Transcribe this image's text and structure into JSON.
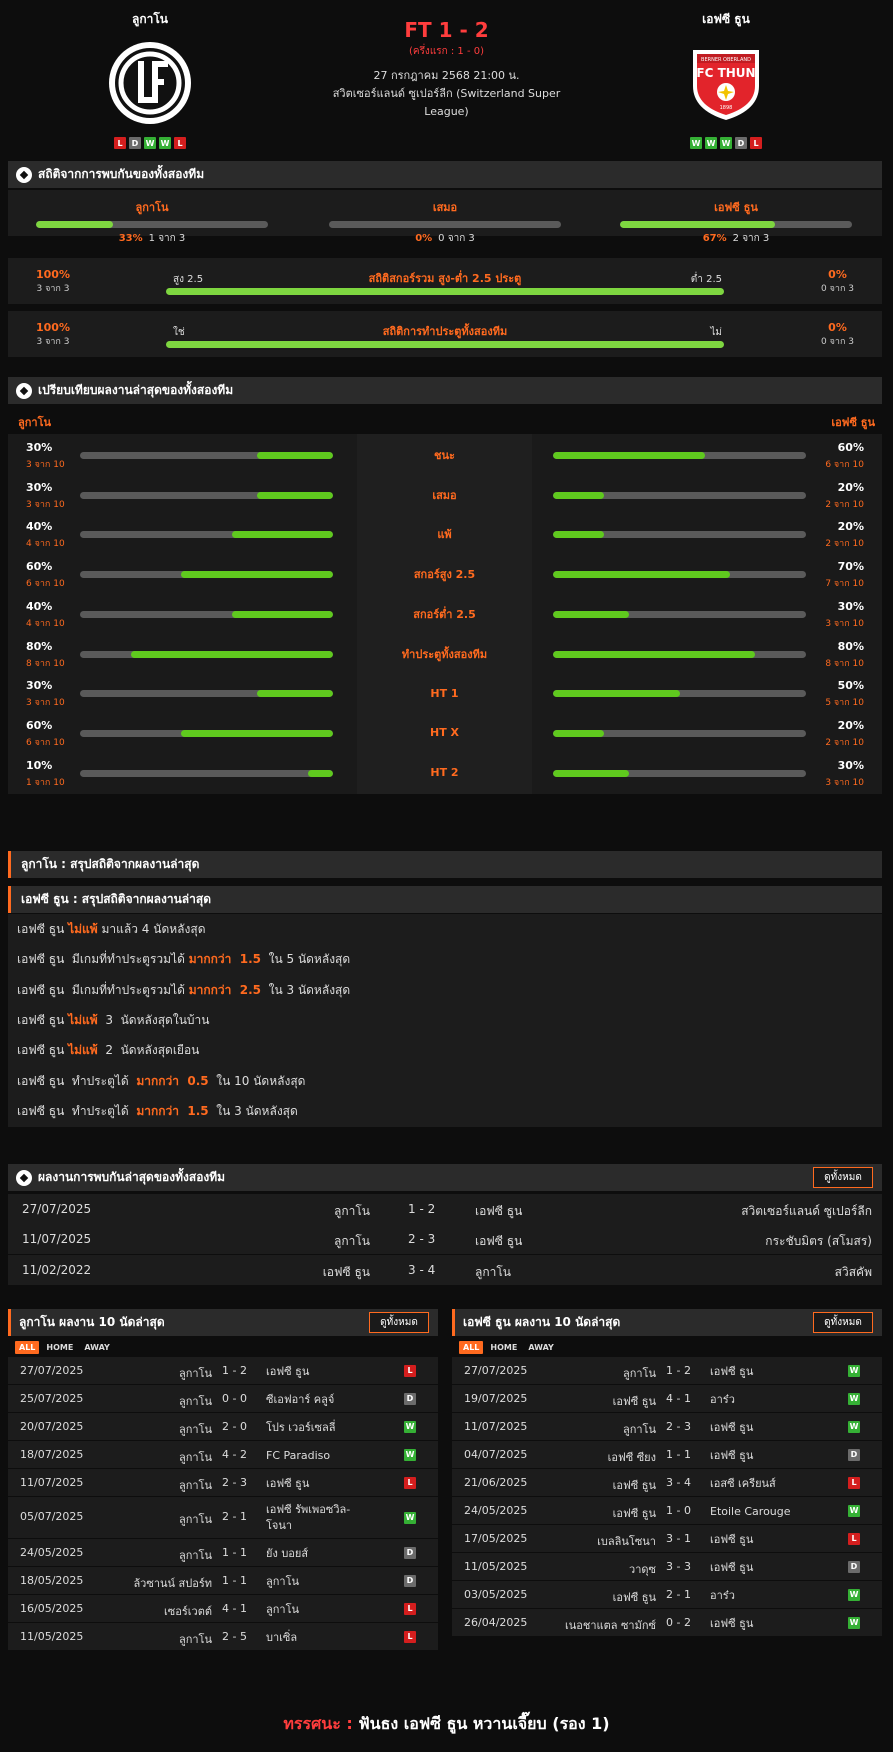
{
  "match": {
    "home": {
      "name": "ลูกาโน",
      "form": [
        "L",
        "D",
        "W",
        "W",
        "L"
      ]
    },
    "away": {
      "name": "เอฟซี ธูน",
      "form": [
        "W",
        "W",
        "W",
        "D",
        "L"
      ]
    },
    "score": "FT 1 - 2",
    "half_time": "(ครึ่งแรก : 1 - 0)",
    "date": "27 กรกฎาคม 2568 21:00 น.",
    "league_line1": "สวิตเซอร์แลนด์ ซูเปอร์ลีก (Switzerland Super",
    "league_line2": "League)",
    "away_logo_text": "FC THUN",
    "away_logo_top": "BERNER OBERLAND",
    "away_logo_year": "1898"
  },
  "h2h_stats": {
    "title": "สถิติจากการพบกันของทั้งสองทีม",
    "cols": [
      {
        "label": "ลูกาโน",
        "pct": "33%",
        "count": "1 จาก 3",
        "fill": 0.33
      },
      {
        "label": "เสมอ",
        "pct": "0%",
        "count": "0 จาก 3",
        "fill": 0
      },
      {
        "label": "เอฟซี ธูน",
        "pct": "67%",
        "count": "2 จาก 3",
        "fill": 0.67
      }
    ],
    "ou": {
      "title": "สถิติสกอร์รวม สูง-ต่ำ 2.5 ประตู",
      "left_label": "สูง 2.5",
      "right_label": "ต่ำ 2.5",
      "left_pct": "100%",
      "left_count": "3 จาก 3",
      "right_pct": "0%",
      "right_count": "0 จาก 3"
    },
    "btts": {
      "title": "สถิติการทำประตูทั้งสองทีม",
      "left_label": "ใช่",
      "right_label": "ไม่",
      "left_pct": "100%",
      "left_count": "3 จาก 3",
      "right_pct": "0%",
      "right_count": "0 จาก 3"
    }
  },
  "compare": {
    "title": "เปรียบเทียบผลงานล่าสุดของทั้งสองทีม",
    "home_label": "ลูกาโน",
    "away_label": "เอฟซี ธูน",
    "rows": [
      {
        "label": "ชนะ",
        "hp": "30%",
        "hc": "3 จาก 10",
        "hf": 0.3,
        "ap": "60%",
        "ac": "6 จาก 10",
        "af": 0.6
      },
      {
        "label": "เสมอ",
        "hp": "30%",
        "hc": "3 จาก 10",
        "hf": 0.3,
        "ap": "20%",
        "ac": "2 จาก 10",
        "af": 0.2
      },
      {
        "label": "แพ้",
        "hp": "40%",
        "hc": "4 จาก 10",
        "hf": 0.4,
        "ap": "20%",
        "ac": "2 จาก 10",
        "af": 0.2
      },
      {
        "label": "สกอร์สูง 2.5",
        "hp": "60%",
        "hc": "6 จาก 10",
        "hf": 0.6,
        "ap": "70%",
        "ac": "7 จาก 10",
        "af": 0.7
      },
      {
        "label": "สกอร์ต่ำ 2.5",
        "hp": "40%",
        "hc": "4 จาก 10",
        "hf": 0.4,
        "ap": "30%",
        "ac": "3 จาก 10",
        "af": 0.3
      },
      {
        "label": "ทำประตูทั้งสองทีม",
        "hp": "80%",
        "hc": "8 จาก 10",
        "hf": 0.8,
        "ap": "80%",
        "ac": "8 จาก 10",
        "af": 0.8
      },
      {
        "label": "HT 1",
        "hp": "30%",
        "hc": "3 จาก 10",
        "hf": 0.3,
        "ap": "50%",
        "ac": "5 จาก 10",
        "af": 0.5
      },
      {
        "label": "HT X",
        "hp": "60%",
        "hc": "6 จาก 10",
        "hf": 0.6,
        "ap": "20%",
        "ac": "2 จาก 10",
        "af": 0.2
      },
      {
        "label": "HT 2",
        "hp": "10%",
        "hc": "1 จาก 10",
        "hf": 0.1,
        "ap": "30%",
        "ac": "3 จาก 10",
        "af": 0.3
      }
    ]
  },
  "summary": {
    "home_title": "ลูกาโน : สรุปสถิติจากผลงานล่าสุด",
    "away_title": "เอฟซี ธูน : สรุปสถิติจากผลงานล่าสุด",
    "items": [
      {
        "a": "เอฟซี ธูน ",
        "b": "ไม่แพ้",
        "c": " มาแล้ว 4 นัดหลังสุด"
      },
      {
        "a": "เอฟซี ธูน  มีเกมที่ทำประตูรวมได้ ",
        "b": "มากกว่า  1.5",
        "c": "  ใน 5 นัดหลังสุด"
      },
      {
        "a": "เอฟซี ธูน  มีเกมที่ทำประตูรวมได้ ",
        "b": "มากกว่า  2.5",
        "c": "  ใน 3 นัดหลังสุด"
      },
      {
        "a": "เอฟซี ธูน ",
        "b": "ไม่แพ้",
        "c": "  3  นัดหลังสุดในบ้าน"
      },
      {
        "a": "เอฟซี ธูน ",
        "b": "ไม่แพ้",
        "c": "  2  นัดหลังสุดเยือน"
      },
      {
        "a": "เอฟซี ธูน  ทำประตูได้  ",
        "b": "มากกว่า  0.5",
        "c": "  ใน 10 นัดหลังสุด"
      },
      {
        "a": "เอฟซี ธูน  ทำประตูได้  ",
        "b": "มากกว่า  1.5",
        "c": "  ใน 3 นัดหลังสุด"
      }
    ]
  },
  "h2h_results": {
    "title": "ผลงานการพบกันล่าสุดของทั้งสองทีม",
    "view_all": "ดูทั้งหมด",
    "rows": [
      {
        "date": "27/07/2025",
        "home": "ลูกาโน",
        "score": "1 - 2",
        "away": "เอฟซี ธูน",
        "league": "สวิตเซอร์แลนด์ ซูเปอร์ลีก"
      },
      {
        "date": "11/07/2025",
        "home": "ลูกาโน",
        "score": "2 - 3",
        "away": "เอฟซี ธูน",
        "league": "กระชับมิตร (สโมสร)"
      },
      {
        "date": "11/02/2022",
        "home": "เอฟซี ธูน",
        "score": "3 - 4",
        "away": "ลูกาโน",
        "league": "สวิสคัพ"
      }
    ]
  },
  "last10_home": {
    "title": "ลูกาโน ผลงาน 10 นัดล่าสุด",
    "view_all": "ดูทั้งหมด",
    "tabs": [
      "ALL",
      "HOME",
      "AWAY"
    ],
    "rows": [
      {
        "date": "27/07/2025",
        "home": "ลูกาโน",
        "score": "1 - 2",
        "away": "เอฟซี ธูน",
        "res": "L"
      },
      {
        "date": "25/07/2025",
        "home": "ลูกาโน",
        "score": "0 - 0",
        "away": "ซีเอฟอาร์ คลูจ์",
        "res": "D"
      },
      {
        "date": "20/07/2025",
        "home": "ลูกาโน",
        "score": "2 - 0",
        "away": "โปร เวอร์เซลลี่",
        "res": "W"
      },
      {
        "date": "18/07/2025",
        "home": "ลูกาโน",
        "score": "4 - 2",
        "away": "FC Paradiso",
        "res": "W"
      },
      {
        "date": "11/07/2025",
        "home": "ลูกาโน",
        "score": "2 - 3",
        "away": "เอฟซี ธูน",
        "res": "L"
      },
      {
        "date": "05/07/2025",
        "home": "ลูกาโน",
        "score": "2 - 1",
        "away": "เอฟซี รัพเพอซวิล-",
        "away2": "โจนา",
        "res": "W"
      },
      {
        "date": "24/05/2025",
        "home": "ลูกาโน",
        "score": "1 - 1",
        "away": "ยัง บอยส์",
        "res": "D"
      },
      {
        "date": "18/05/2025",
        "home": "ล้วซานน์ สปอร์ท",
        "score": "1 - 1",
        "away": "ลูกาโน",
        "res": "D"
      },
      {
        "date": "16/05/2025",
        "home": "เซอร์เวตต์",
        "score": "4 - 1",
        "away": "ลูกาโน",
        "res": "L"
      },
      {
        "date": "11/05/2025",
        "home": "ลูกาโน",
        "score": "2 - 5",
        "away": "บาเซิ่ล",
        "res": "L"
      }
    ]
  },
  "last10_away": {
    "title": "เอฟซี ธูน ผลงาน 10 นัดล่าสุด",
    "view_all": "ดูทั้งหมด",
    "tabs": [
      "ALL",
      "HOME",
      "AWAY"
    ],
    "rows": [
      {
        "date": "27/07/2025",
        "home": "ลูกาโน",
        "score": "1 - 2",
        "away": "เอฟซี ธูน",
        "res": "W"
      },
      {
        "date": "19/07/2025",
        "home": "เอฟซี ธูน",
        "score": "4 - 1",
        "away": "อาร๋ว",
        "res": "W"
      },
      {
        "date": "11/07/2025",
        "home": "ลูกาโน",
        "score": "2 - 3",
        "away": "เอฟซี ธูน",
        "res": "W"
      },
      {
        "date": "04/07/2025",
        "home": "เอฟซี ซียง",
        "score": "1 - 1",
        "away": "เอฟซี ธูน",
        "res": "D"
      },
      {
        "date": "21/06/2025",
        "home": "เอฟซี ธูน",
        "score": "3 - 4",
        "away": "เอสซี เครียนส์",
        "res": "L"
      },
      {
        "date": "24/05/2025",
        "home": "เอฟซี ธูน",
        "score": "1 - 0",
        "away": "Etoile Carouge",
        "res": "W"
      },
      {
        "date": "17/05/2025",
        "home": "เบลลินโซนา",
        "score": "3 - 1",
        "away": "เอฟซี ธูน",
        "res": "L"
      },
      {
        "date": "11/05/2025",
        "home": "วาดุซ",
        "score": "3 - 3",
        "away": "เอฟซี ธูน",
        "res": "D"
      },
      {
        "date": "03/05/2025",
        "home": "เอฟซี ธูน",
        "score": "2 - 1",
        "away": "อาร๋ว",
        "res": "W"
      },
      {
        "date": "26/04/2025",
        "home": "เนอชาแตล ซามักซ์",
        "score": "0 - 2",
        "away": "เอฟซี ธูน",
        "res": "W"
      }
    ]
  },
  "verdict": {
    "label": "ทรรศนะ :",
    "text": "ฟันธง เอฟซี ธูน หวานเจี๊ยบ (รอง 1)"
  },
  "colors": {
    "accent": "#ff6a1f",
    "score": "#ff3d3d",
    "bar": "#7ed640",
    "win": "#35b035",
    "loss": "#d41e1e",
    "draw": "#6b6b6b"
  }
}
